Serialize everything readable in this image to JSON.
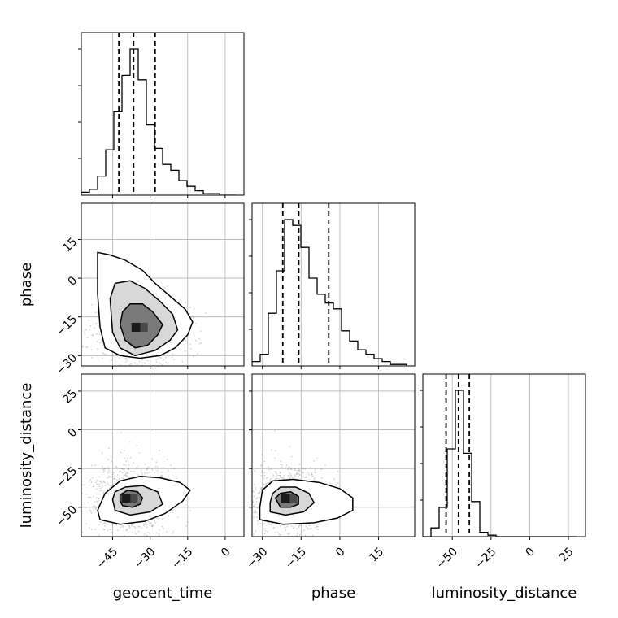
{
  "chart_data": {
    "type": "corner",
    "parameters": [
      "geocent_time",
      "phase",
      "luminosity_distance"
    ],
    "ranges": {
      "geocent_time": [
        -57.5,
        7.5
      ],
      "phase": [
        -34,
        29
      ],
      "luminosity_distance": [
        -69,
        36
      ]
    },
    "ticks": {
      "geocent_time": [
        -45,
        -30,
        -15,
        0
      ],
      "phase": [
        -30,
        -15,
        0,
        15
      ],
      "luminosity_distance": [
        -50,
        -25,
        0,
        25
      ]
    },
    "tick_labels": {
      "geocent_time": [
        "−45",
        "−30",
        "−15",
        "0"
      ],
      "phase": [
        "−30",
        "−15",
        "0",
        "15"
      ],
      "luminosity_distance": [
        "−50",
        "−25",
        "0",
        "25"
      ]
    },
    "quantiles": {
      "geocent_time": [
        -42.5,
        -36.6,
        -28.0
      ],
      "phase": [
        -22.1,
        -15.9,
        -4.3
      ],
      "luminosity_distance": [
        -54.0,
        -46.0,
        -39.0
      ]
    },
    "histograms": {
      "geocent_time": {
        "edges": [
          -57.5,
          -54.25,
          -51.0,
          -47.75,
          -44.5,
          -41.25,
          -38.0,
          -34.75,
          -31.5,
          -28.25,
          -25.0,
          -21.75,
          -18.5,
          -15.25,
          -12.0,
          -8.75,
          -5.5,
          -2.25,
          1.0,
          4.25
        ],
        "counts": [
          2,
          4,
          13,
          31,
          57,
          82,
          100,
          79,
          48,
          32,
          21,
          17,
          10,
          6,
          3,
          1,
          1,
          0,
          0
        ]
      },
      "phase": {
        "edges": [
          -34,
          -30.85,
          -27.7,
          -24.55,
          -21.4,
          -18.25,
          -15.1,
          -11.95,
          -8.8,
          -5.65,
          -2.5,
          0.65,
          3.8,
          6.95,
          10.1,
          13.25,
          16.4,
          19.55,
          22.7,
          25.85
        ],
        "counts": [
          3,
          8,
          36,
          65,
          100,
          96,
          81,
          60,
          49,
          43,
          39,
          24,
          17,
          11,
          8,
          5,
          3,
          1,
          1
        ]
      },
      "luminosity_distance": {
        "edges": [
          -69,
          -63.75,
          -58.5,
          -53.25,
          -48.0,
          -42.75,
          -37.5,
          -32.25,
          -27.0,
          -21.75,
          -16.5,
          -11.25,
          -6.0,
          -0.75,
          4.5,
          9.25,
          14.5,
          19.75,
          25.0,
          30.25
        ],
        "counts": [
          0,
          6,
          20,
          60,
          100,
          57,
          24,
          3,
          1,
          0,
          0,
          0,
          0,
          0,
          0,
          0,
          0,
          0,
          0
        ]
      }
    },
    "pairs": [
      {
        "x": "geocent_time",
        "y": "phase",
        "peak": [
          -34.5,
          -19.5
        ],
        "contours": [
          [
            [
              -42,
              -18
            ],
            [
              -40,
              -24
            ],
            [
              -36,
              -27
            ],
            [
              -31,
              -26
            ],
            [
              -27,
              -22
            ],
            [
              -25,
              -18
            ],
            [
              -29,
              -13
            ],
            [
              -33,
              -10
            ],
            [
              -38,
              -10
            ],
            [
              -41,
              -13
            ]
          ],
          [
            [
              -46,
              -8
            ],
            [
              -45,
              -21
            ],
            [
              -42,
              -27
            ],
            [
              -36,
              -30
            ],
            [
              -28,
              -28
            ],
            [
              -22,
              -24
            ],
            [
              -19,
              -20
            ],
            [
              -21,
              -14
            ],
            [
              -26,
              -9
            ],
            [
              -32,
              -4
            ],
            [
              -38,
              -1
            ],
            [
              -44,
              -2
            ]
          ],
          [
            [
              -51,
              10
            ],
            [
              -51,
              -6
            ],
            [
              -50,
              -19
            ],
            [
              -48,
              -27
            ],
            [
              -42,
              -30
            ],
            [
              -34,
              -31
            ],
            [
              -26,
              -30
            ],
            [
              -20,
              -27
            ],
            [
              -15,
              -22
            ],
            [
              -13,
              -17
            ],
            [
              -16,
              -12
            ],
            [
              -22,
              -7
            ],
            [
              -28,
              -2
            ],
            [
              -33,
              3
            ],
            [
              -40,
              7
            ],
            [
              -46,
              9
            ]
          ]
        ]
      },
      {
        "x": "geocent_time",
        "y": "luminosity_distance",
        "peak": [
          -38.5,
          -45
        ],
        "contours": [
          [
            [
              -42,
              -46
            ],
            [
              -41,
              -49
            ],
            [
              -37,
              -50
            ],
            [
              -34,
              -48
            ],
            [
              -33,
              -44
            ],
            [
              -35,
              -40
            ],
            [
              -39,
              -39
            ],
            [
              -42,
              -42
            ]
          ],
          [
            [
              -45,
              -45
            ],
            [
              -44,
              -52
            ],
            [
              -38,
              -55
            ],
            [
              -30,
              -53
            ],
            [
              -25,
              -48
            ],
            [
              -27,
              -40
            ],
            [
              -33,
              -36
            ],
            [
              -40,
              -37
            ],
            [
              -44,
              -40
            ]
          ],
          [
            [
              -51,
              -52
            ],
            [
              -50,
              -58
            ],
            [
              -42,
              -61
            ],
            [
              -32,
              -59
            ],
            [
              -24,
              -54
            ],
            [
              -17,
              -46
            ],
            [
              -14,
              -39
            ],
            [
              -18,
              -34
            ],
            [
              -26,
              -31
            ],
            [
              -34,
              -30
            ],
            [
              -42,
              -33
            ],
            [
              -48,
              -41
            ]
          ]
        ]
      },
      {
        "x": "phase",
        "y": "luminosity_distance",
        "peak": [
          -20,
          -45
        ],
        "contours": [
          [
            [
              -24,
              -47
            ],
            [
              -23,
              -50
            ],
            [
              -19,
              -50
            ],
            [
              -16,
              -48
            ],
            [
              -16,
              -43
            ],
            [
              -19,
              -40
            ],
            [
              -23,
              -41
            ],
            [
              -25,
              -44
            ]
          ],
          [
            [
              -27,
              -47
            ],
            [
              -27,
              -53
            ],
            [
              -21,
              -55
            ],
            [
              -14,
              -53
            ],
            [
              -10,
              -47
            ],
            [
              -12,
              -41
            ],
            [
              -17,
              -37
            ],
            [
              -23,
              -37
            ],
            [
              -26,
              -41
            ]
          ],
          [
            [
              -31,
              -50
            ],
            [
              -31,
              -58
            ],
            [
              -22,
              -61
            ],
            [
              -10,
              -60
            ],
            [
              -1,
              -57
            ],
            [
              5,
              -52
            ],
            [
              5,
              -44
            ],
            [
              0,
              -38
            ],
            [
              -8,
              -34
            ],
            [
              -18,
              -32
            ],
            [
              -26,
              -33
            ],
            [
              -30,
              -39
            ]
          ]
        ]
      }
    ],
    "xlabels": [
      "geocent_time",
      "phase",
      "luminosity_distance"
    ],
    "ylabels": [
      "",
      "phase",
      "luminosity_distance"
    ],
    "grid": true
  },
  "colors": {
    "line": "#000000",
    "grid": "#b0b0b0",
    "scatter": "#808080",
    "background": "#ffffff"
  }
}
